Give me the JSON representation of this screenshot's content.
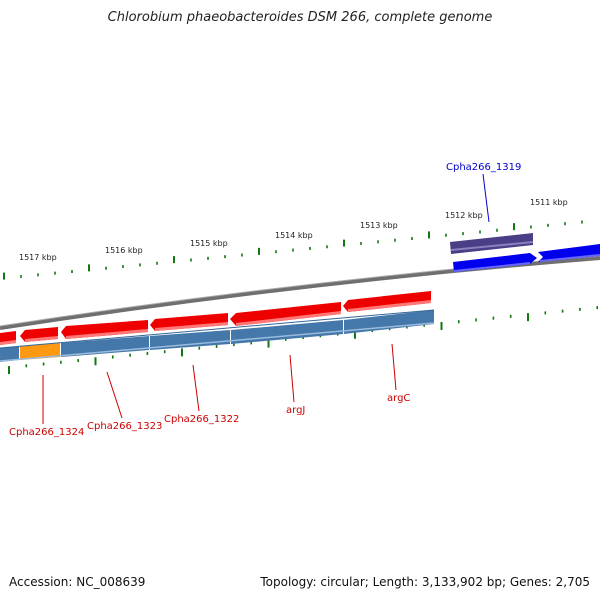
{
  "title": "Chlorobium phaeobacteroides DSM 266, complete genome",
  "colors": {
    "forward_gene": "#0000ee",
    "forward_gene_dark": "#4a3f86",
    "reverse_gene": "#ee0000",
    "cds_blue": "#4477aa",
    "cds_orange": "#ff9911",
    "backbone": "#888888",
    "tick": "#117711",
    "label_red": "#cc0000",
    "label_blue": "#0000cc"
  },
  "scale_upper": [
    {
      "label": "1517 kbp"
    },
    {
      "label": "1516 kbp"
    },
    {
      "label": "1515 kbp"
    },
    {
      "label": "1514 kbp"
    },
    {
      "label": "1513 kbp"
    },
    {
      "label": "1512 kbp"
    },
    {
      "label": "1511 kbp"
    }
  ],
  "gene_labels": [
    {
      "text": "Cpha266_1319",
      "strand": "forward"
    },
    {
      "text": "Cpha266_1324",
      "strand": "reverse"
    },
    {
      "text": "Cpha266_1323",
      "strand": "reverse"
    },
    {
      "text": "Cpha266_1322",
      "strand": "reverse"
    },
    {
      "text": "argJ",
      "strand": "reverse"
    },
    {
      "text": "argC",
      "strand": "reverse"
    }
  ],
  "footer": {
    "accession": "Accession: NC_008639",
    "topology": "Topology: circular; Length: 3,133,902 bp; Genes: 2,705"
  }
}
